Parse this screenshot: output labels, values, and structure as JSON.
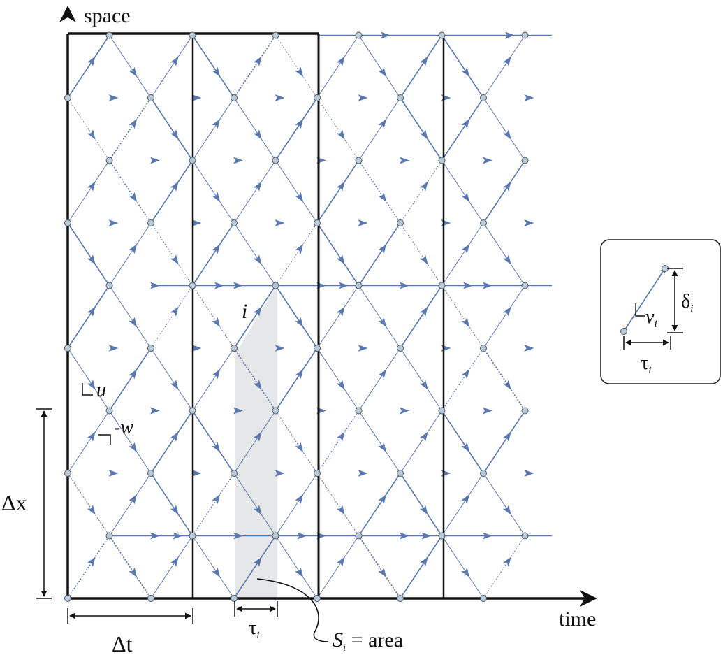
{
  "axes": {
    "y_label": "space",
    "x_label": "time"
  },
  "labels": {
    "node_i": "i",
    "slope_u": "u",
    "slope_w": "-w",
    "delta_x": "Δx",
    "delta_t": "Δt",
    "tau_main": "τ",
    "tau_main_sub": "i",
    "area_S": "S",
    "area_sub": "i",
    "area_rest": " = area"
  },
  "inset": {
    "v": "v",
    "v_sub": "i",
    "delta": "δ",
    "delta_sub": "i",
    "tau": "τ",
    "tau_sub": "i"
  },
  "colors": {
    "grid_line": "#111111",
    "flow_line": "#5a78b0",
    "node_fill": "#b9c9d6",
    "shade": "#e6e7e9"
  },
  "icons": [
    "arrow-head-icon",
    "right-angle-icon",
    "dimension-arrow-icon"
  ]
}
